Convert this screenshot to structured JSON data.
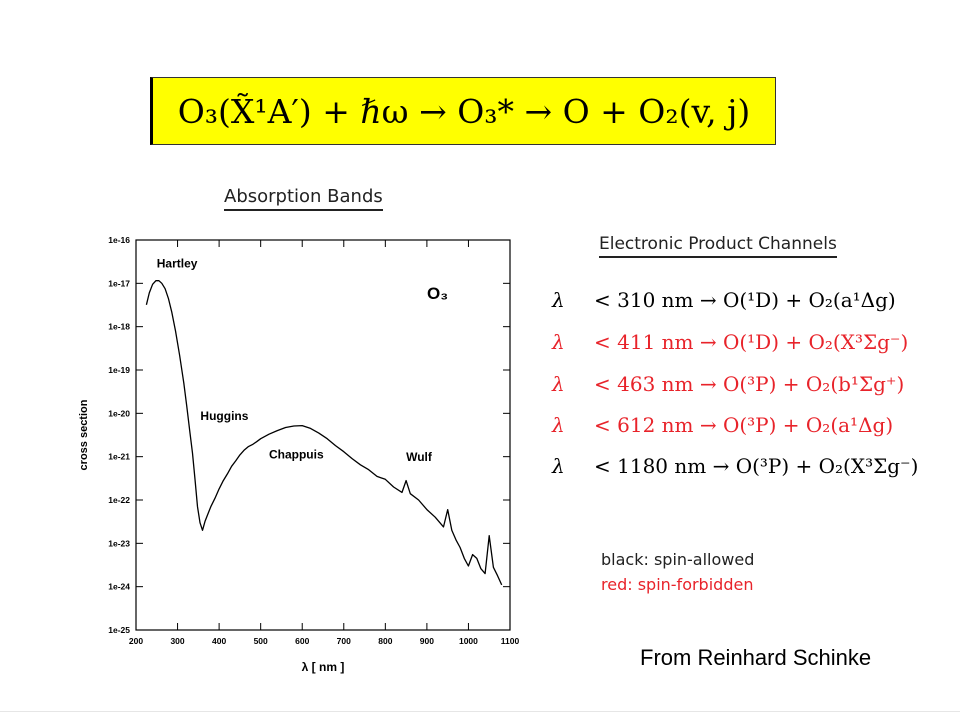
{
  "equation": "O₃(X̃¹A′) + ℏω → O₃* → O + O₂(v, j)",
  "absorption_title": "Absorption Bands",
  "channels_title": "Electronic Product Channels",
  "channels": [
    {
      "symbol": "λ",
      "text": "< 310 nm → O(¹D) + O₂(a¹Δg)",
      "color": "#000000"
    },
    {
      "symbol": "λ",
      "text": "< 411 nm → O(¹D) + O₂(X³Σg⁻)",
      "color": "#e8232a"
    },
    {
      "symbol": "λ",
      "text": "< 463 nm → O(³P) + O₂(b¹Σg⁺)",
      "color": "#e8232a"
    },
    {
      "symbol": "λ",
      "text": "< 612 nm → O(³P) + O₂(a¹Δg)",
      "color": "#e8232a"
    },
    {
      "symbol": "λ",
      "text": "< 1180 nm → O(³P) + O₂(X³Σg⁻)",
      "color": "#000000"
    }
  ],
  "legend_note": {
    "allowed": "black: spin-allowed",
    "forbidden": "red: spin-forbidden"
  },
  "credit": "From Reinhard Schinke",
  "chart_data": {
    "type": "line",
    "title": "",
    "xlabel": "λ [ nm ]",
    "ylabel": "cross section",
    "xlim": [
      200,
      1100
    ],
    "ylim_log10": [
      -25,
      -16
    ],
    "y_scale": "log",
    "x_ticks": [
      200,
      300,
      400,
      500,
      600,
      700,
      800,
      900,
      1000,
      1100
    ],
    "y_ticks": [
      "1e-16",
      "1e-17",
      "1e-18",
      "1e-19",
      "1e-20",
      "1e-21",
      "1e-22",
      "1e-23",
      "1e-24",
      "1e-25"
    ],
    "annotations": [
      {
        "text": "Hartley",
        "x": 250,
        "y": 2.3e-17
      },
      {
        "text": "Huggins",
        "x": 355,
        "y": 7e-21
      },
      {
        "text": "Chappuis",
        "x": 520,
        "y": 9e-22
      },
      {
        "text": "Wulf",
        "x": 850,
        "y": 8e-22
      }
    ],
    "species_label": "O₃",
    "series": [
      {
        "x": [
          225,
          232,
          240,
          248,
          255,
          262,
          270,
          278,
          286,
          295,
          305,
          315,
          322,
          330,
          336,
          342,
          348,
          354,
          360,
          366,
          372,
          380,
          390,
          400,
          410,
          420,
          430,
          440,
          450,
          460,
          470,
          480,
          490,
          500,
          520,
          540,
          560,
          580,
          600,
          620,
          640,
          660,
          680,
          700,
          720,
          740,
          760,
          780,
          800,
          820,
          840,
          850,
          860,
          880,
          900,
          920,
          940,
          950,
          960,
          970,
          980,
          990,
          1000,
          1010,
          1020,
          1030,
          1040,
          1050,
          1060,
          1070,
          1080
        ],
        "y": [
          3.2e-18,
          6e-18,
          9.5e-18,
          1.15e-17,
          1.15e-17,
          1e-17,
          7.5e-18,
          4.5e-18,
          2.2e-18,
          8e-19,
          2.2e-19,
          5e-20,
          1.5e-20,
          3.5e-21,
          1.2e-21,
          3e-22,
          7e-23,
          3e-23,
          2e-23,
          3.2e-23,
          4.5e-23,
          7e-23,
          1.1e-22,
          1.8e-22,
          2.8e-22,
          4e-22,
          6e-22,
          8e-22,
          1.1e-21,
          1.4e-21,
          1.7e-21,
          1.9e-21,
          2.2e-21,
          2.6e-21,
          3.3e-21,
          4e-21,
          4.7e-21,
          5.1e-21,
          5.2e-21,
          4.5e-21,
          3.5e-21,
          2.6e-21,
          1.8e-21,
          1.3e-21,
          9e-22,
          6.5e-22,
          5e-22,
          3.5e-22,
          3e-22,
          2e-22,
          1.5e-22,
          2.8e-22,
          1.4e-22,
          1e-22,
          6e-23,
          4e-23,
          2.4e-23,
          6e-23,
          2e-23,
          1.2e-23,
          8e-24,
          4.5e-24,
          3e-24,
          5.5e-24,
          4.5e-24,
          2.6e-24,
          2e-24,
          1.5e-23,
          2.8e-24,
          1.8e-24,
          1.1e-24
        ]
      }
    ]
  }
}
